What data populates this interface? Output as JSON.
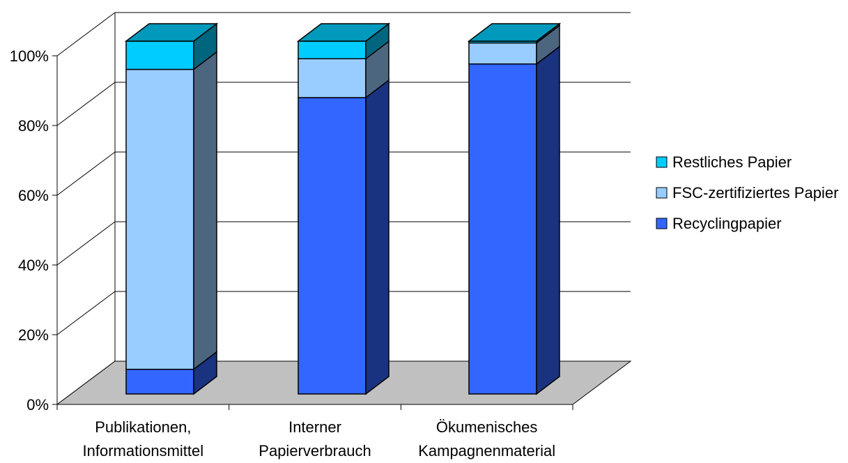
{
  "chart_data": {
    "type": "bar",
    "stacked": true,
    "percent_stacked": true,
    "three_d": true,
    "categories": [
      [
        "Publikationen,",
        "Informationsmittel"
      ],
      [
        "Interner",
        "Papierverbrauch"
      ],
      [
        "Ökumenisches",
        "Kampagnenmaterial"
      ]
    ],
    "series": [
      {
        "name": "Recyclingpapier",
        "values": [
          7,
          84,
          94
        ],
        "color": "#3366FF",
        "side_color": "#1A3380",
        "top_color": "#1F3D99"
      },
      {
        "name": "FSC-zertifiziertes Papier",
        "values": [
          85,
          11,
          6
        ],
        "color": "#99CCFF",
        "side_color": "#4D6680",
        "top_color": "#5C7A99"
      },
      {
        "name": "Restliches Papier",
        "values": [
          8,
          5,
          0.5
        ],
        "color": "#00CCFF",
        "side_color": "#006680",
        "top_color": "#0099BB"
      }
    ],
    "yticks": [
      "0%",
      "20%",
      "40%",
      "60%",
      "80%",
      "100%"
    ],
    "ylim": [
      0,
      100
    ],
    "grid": true,
    "legend_position": "right",
    "floor_color": "#C0C0C0"
  }
}
